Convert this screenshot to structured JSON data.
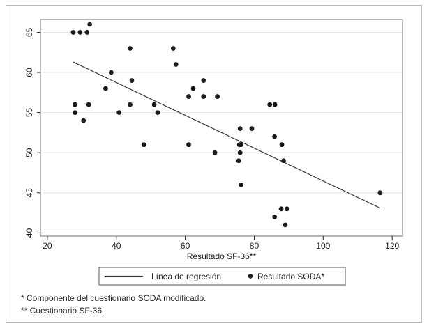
{
  "chart_data": {
    "type": "scatter",
    "xlabel": "Resultado SF-36**",
    "ylabel": "",
    "xlim": [
      18,
      123
    ],
    "ylim": [
      39.6,
      66.6
    ],
    "xticks": [
      20,
      40,
      60,
      80,
      100,
      120
    ],
    "yticks": [
      40,
      45,
      50,
      55,
      60,
      65
    ],
    "grid": true,
    "legend_position": "bottom",
    "series": [
      {
        "name": "Resultado SODA*",
        "kind": "points",
        "points": [
          [
            27.5,
            65
          ],
          [
            29.5,
            65
          ],
          [
            31.5,
            65
          ],
          [
            32.3,
            66
          ],
          [
            44,
            63
          ],
          [
            56.5,
            63
          ],
          [
            57.3,
            61
          ],
          [
            38.5,
            60
          ],
          [
            44.5,
            59
          ],
          [
            65.3,
            59
          ],
          [
            36.9,
            58
          ],
          [
            62.3,
            58
          ],
          [
            61,
            57
          ],
          [
            65.3,
            57
          ],
          [
            69.3,
            57
          ],
          [
            28,
            56
          ],
          [
            32,
            56
          ],
          [
            44,
            56
          ],
          [
            51,
            56
          ],
          [
            84.5,
            56
          ],
          [
            86,
            56
          ],
          [
            28,
            55
          ],
          [
            40.8,
            55
          ],
          [
            52,
            55
          ],
          [
            30.5,
            54
          ],
          [
            75.9,
            53
          ],
          [
            79.3,
            53
          ],
          [
            85.9,
            52
          ],
          [
            48,
            51
          ],
          [
            61,
            51
          ],
          [
            75.7,
            51
          ],
          [
            76.1,
            51
          ],
          [
            88,
            51
          ],
          [
            68.6,
            50
          ],
          [
            75.9,
            50
          ],
          [
            75.5,
            49
          ],
          [
            88.5,
            49
          ],
          [
            76.2,
            46
          ],
          [
            116.5,
            45
          ],
          [
            87.8,
            43
          ],
          [
            89.5,
            43
          ],
          [
            85.9,
            42
          ],
          [
            89,
            41
          ]
        ]
      },
      {
        "name": "Línea de regresión",
        "kind": "line",
        "points": [
          [
            27.5,
            61.3
          ],
          [
            116.5,
            43.1
          ]
        ]
      }
    ]
  },
  "footnotes": [
    "* Componente del cuestionario SODA modificado.",
    "** Cuestionario SF-36."
  ],
  "colors": {
    "points": "#1a1a1a",
    "line": "#3a3a3a",
    "grid": "#e6e6e6",
    "axis": "#222222"
  }
}
